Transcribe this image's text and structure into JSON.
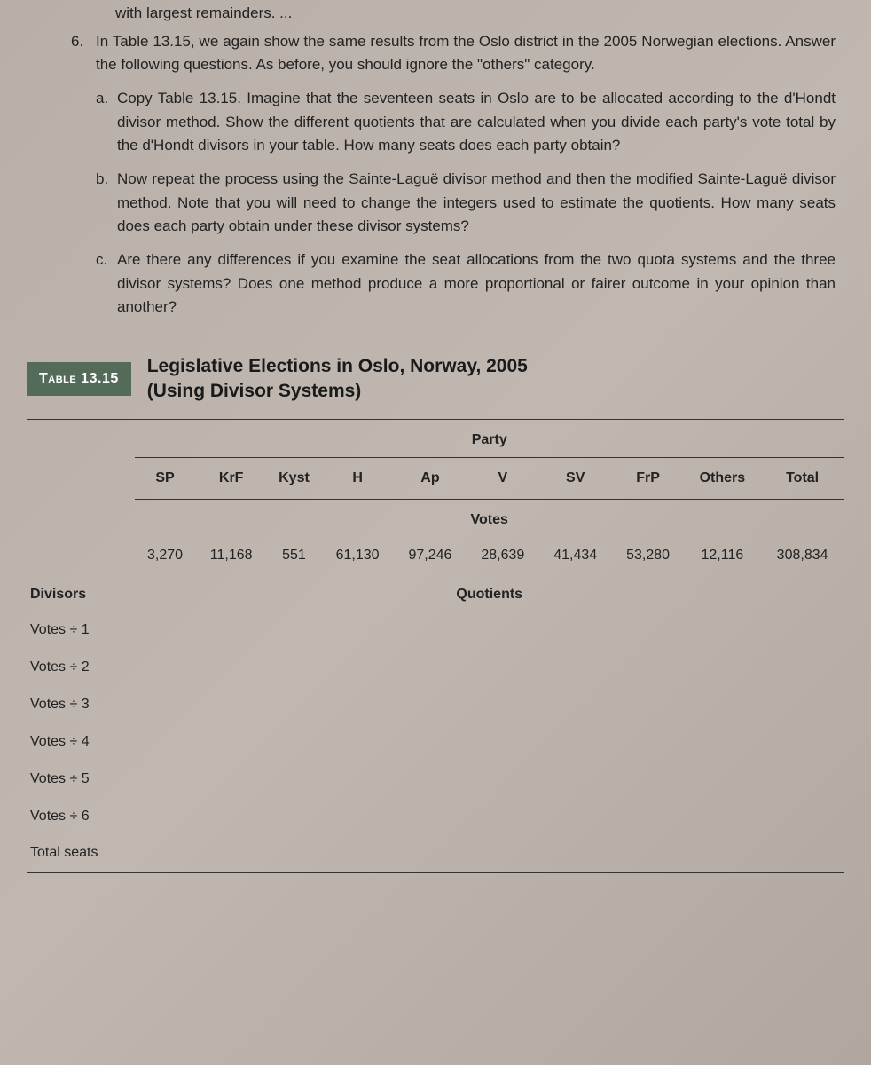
{
  "cutoff_text": "with largest remainders. ...",
  "problem": {
    "number": "6.",
    "intro": "In Table 13.15, we again show the same results from the Oslo district in the 2005 Norwegian elections. Answer the following questions. As before, you should ignore the \"others\" category.",
    "subs": [
      {
        "letter": "a.",
        "text": "Copy Table 13.15. Imagine that the seventeen seats in Oslo are to be allocated according to the d'Hondt divisor method. Show the different quotients that are calculated when you divide each party's vote total by the d'Hondt divisors in your table. How many seats does each party obtain?"
      },
      {
        "letter": "b.",
        "text": "Now repeat the process using the Sainte-Laguë divisor method and then the modified Sainte-Laguë divisor method. Note that you will need to change the integers used to estimate the quotients. How many seats does each party obtain under these divisor systems?"
      },
      {
        "letter": "c.",
        "text": "Are there any differences if you examine the seat allocations from the two quota systems and the three divisor systems? Does one method produce a more proportional or fairer outcome in your opinion than another?"
      }
    ]
  },
  "table": {
    "tag_label": "Table",
    "tag_number": "13.15",
    "title_line1": "Legislative Elections in Oslo, Norway, 2005",
    "title_line2": "(Using Divisor Systems)",
    "party_header": "Party",
    "votes_header": "Votes",
    "quotients_header": "Quotients",
    "divisors_label": "Divisors",
    "columns": [
      "SP",
      "KrF",
      "Kyst",
      "H",
      "Ap",
      "V",
      "SV",
      "FrP",
      "Others",
      "Total"
    ],
    "votes": [
      "3,270",
      "11,168",
      "551",
      "61,130",
      "97,246",
      "28,639",
      "41,434",
      "53,280",
      "12,116",
      "308,834"
    ],
    "divisor_rows": [
      "Votes ÷ 1",
      "Votes ÷ 2",
      "Votes ÷ 3",
      "Votes ÷ 4",
      "Votes ÷ 5",
      "Votes ÷ 6"
    ],
    "total_seats_label": "Total seats"
  }
}
